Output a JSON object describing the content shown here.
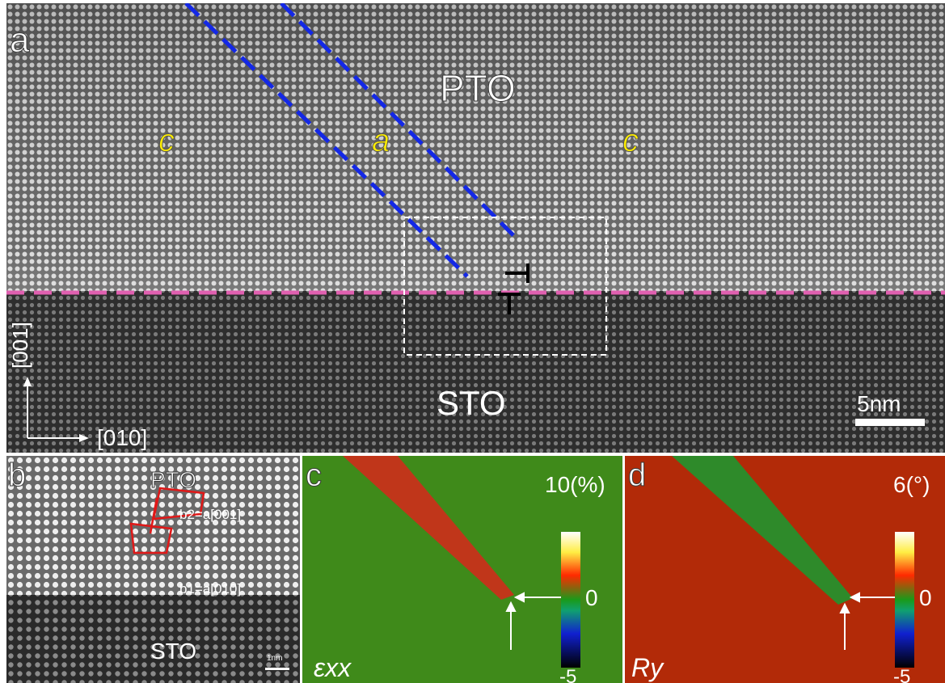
{
  "panels": {
    "a": {
      "panel_letter": "a",
      "film_label": "PTO",
      "substrate_label": "STO",
      "domain_left": "c",
      "domain_middle": "a",
      "domain_right": "c",
      "axis_vertical": "[001]",
      "axis_horizontal": "[010]",
      "scale_bar": "5nm"
    },
    "b": {
      "panel_letter": "b",
      "film_label": "PTO",
      "substrate_label": "STO",
      "burgers_b2": "b2=a[001]",
      "burgers_b1": "b1=a[010]",
      "scale_bar": "1nm"
    },
    "c": {
      "panel_letter": "c",
      "colorbar_max": "10(%)",
      "colorbar_zero": "0",
      "colorbar_min": "-5",
      "map_symbol": "εxx"
    },
    "d": {
      "panel_letter": "d",
      "colorbar_max": "6(°)",
      "colorbar_zero": "0",
      "colorbar_min": "-5",
      "map_symbol": "Ry"
    }
  },
  "colors": {
    "domain_boundary": "#1428e6",
    "interface_line": "#e060b0",
    "domain_letter": "#ffee00",
    "strain_background": "#3f8a1a",
    "strain_domain": "#c0361a",
    "rotation_background": "#b22a08",
    "rotation_domain": "#2e8a2a",
    "burgers_circuit": "#e01818"
  }
}
